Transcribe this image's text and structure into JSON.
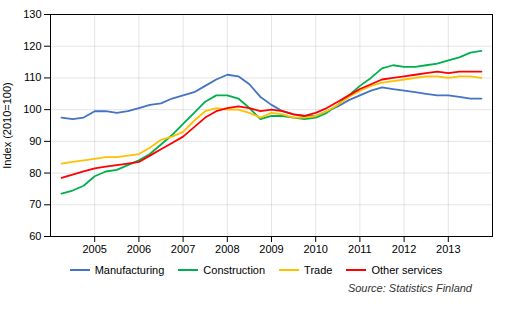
{
  "chart_data": {
    "type": "line",
    "ylabel": "Index (2010=100)",
    "annotations": [
      "Source: Statistics Finland"
    ],
    "x": [
      2004.25,
      2004.5,
      2004.75,
      2005.0,
      2005.25,
      2005.5,
      2005.75,
      2006.0,
      2006.25,
      2006.5,
      2006.75,
      2007.0,
      2007.25,
      2007.5,
      2007.75,
      2008.0,
      2008.25,
      2008.5,
      2008.75,
      2009.0,
      2009.25,
      2009.5,
      2009.75,
      2010.0,
      2010.25,
      2010.5,
      2010.75,
      2011.0,
      2011.25,
      2011.5,
      2011.75,
      2012.0,
      2012.25,
      2012.5,
      2012.75,
      2013.0,
      2013.25,
      2013.5,
      2013.75
    ],
    "series": [
      {
        "name": "Manufacturing",
        "color": "#4472C4",
        "values": [
          97.5,
          97.0,
          97.5,
          99.5,
          99.5,
          99.0,
          99.5,
          100.5,
          101.5,
          102.0,
          103.5,
          104.5,
          105.5,
          107.5,
          109.5,
          111.0,
          110.5,
          108.0,
          104.0,
          101.5,
          99.5,
          98.5,
          98.0,
          98.0,
          99.5,
          101.0,
          103.0,
          104.5,
          106.0,
          107.0,
          106.5,
          106.0,
          105.5,
          105.0,
          104.5,
          104.5,
          104.0,
          103.5,
          103.5
        ]
      },
      {
        "name": "Construction",
        "color": "#00B050",
        "values": [
          73.5,
          74.5,
          76.0,
          79.0,
          80.5,
          81.0,
          82.5,
          84.0,
          86.0,
          89.0,
          92.0,
          95.5,
          99.0,
          102.5,
          104.5,
          104.5,
          103.5,
          100.5,
          97.0,
          98.0,
          98.0,
          97.5,
          97.0,
          97.5,
          99.0,
          101.5,
          104.5,
          107.5,
          110.0,
          113.0,
          114.0,
          113.5,
          113.5,
          114.0,
          114.5,
          115.5,
          116.5,
          118.0,
          118.5
        ]
      },
      {
        "name": "Trade",
        "color": "#FFC000",
        "values": [
          83.0,
          83.5,
          84.0,
          84.5,
          85.0,
          85.0,
          85.5,
          86.0,
          88.0,
          90.5,
          91.5,
          93.0,
          96.5,
          99.5,
          100.5,
          100.0,
          100.0,
          99.0,
          97.5,
          99.0,
          98.5,
          97.5,
          97.5,
          98.0,
          99.5,
          101.5,
          104.0,
          106.0,
          107.5,
          108.5,
          109.0,
          109.5,
          110.0,
          110.5,
          110.5,
          110.0,
          110.5,
          110.5,
          110.0
        ]
      },
      {
        "name": "Other services",
        "color": "#FF0000",
        "values": [
          78.5,
          79.5,
          80.5,
          81.5,
          82.0,
          82.5,
          83.0,
          83.5,
          85.5,
          87.5,
          89.5,
          91.5,
          94.5,
          97.5,
          99.5,
          100.5,
          101.0,
          100.5,
          99.5,
          100.0,
          99.5,
          98.5,
          98.0,
          99.0,
          100.5,
          102.5,
          104.5,
          106.5,
          108.0,
          109.5,
          110.0,
          110.5,
          111.0,
          111.5,
          112.0,
          111.5,
          112.0,
          112.0,
          112.0
        ]
      }
    ],
    "xlim": [
      2004.0,
      2014.0
    ],
    "xticks": [
      2005,
      2006,
      2007,
      2008,
      2009,
      2010,
      2011,
      2012,
      2013
    ],
    "ylim": [
      60,
      130
    ],
    "yticks": [
      60,
      70,
      80,
      90,
      100,
      110,
      120,
      130
    ],
    "grid": true,
    "legend": "bottom"
  }
}
